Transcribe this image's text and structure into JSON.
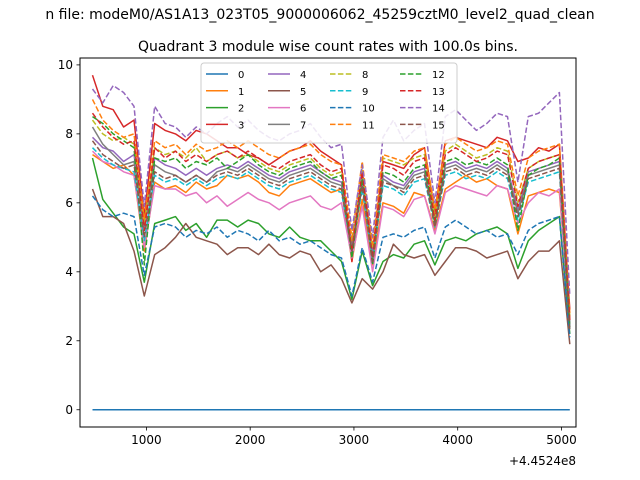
{
  "chart_data": {
    "type": "line",
    "suptitle": "n file: modeM0/AS1A13_023T05_9000006062_45259cztM0_level2_quad_clean",
    "title": "Quadrant 3 module wise count rates with 100.0s bins.",
    "xlabel": "",
    "ylabel": "",
    "x_offset_label": "+4.4524e8",
    "xlim": [
      360,
      5140
    ],
    "ylim": [
      -0.5,
      10.2
    ],
    "xticks": [
      1000,
      2000,
      3000,
      4000,
      5000
    ],
    "xtick_labels": [
      "1000",
      "2000",
      "3000",
      "4000",
      "5000"
    ],
    "yticks": [
      0,
      2,
      4,
      6,
      8,
      10
    ],
    "ytick_labels": [
      "0",
      "2",
      "4",
      "6",
      "8",
      "10"
    ],
    "grid": false,
    "legend_placement": "top-center",
    "legend_columns": 4,
    "x": [
      480,
      580,
      680,
      780,
      880,
      980,
      1080,
      1180,
      1280,
      1380,
      1480,
      1580,
      1680,
      1780,
      1880,
      1980,
      2080,
      2180,
      2280,
      2380,
      2480,
      2580,
      2680,
      2780,
      2880,
      2980,
      3080,
      3180,
      3280,
      3380,
      3480,
      3580,
      3680,
      3780,
      3880,
      3980,
      4080,
      4180,
      4280,
      4380,
      4480,
      4580,
      4680,
      4780,
      4880,
      4980,
      5080
    ],
    "series": [
      {
        "name": "0",
        "color": "#1f77b4",
        "dash": "solid",
        "values": [
          0,
          0,
          0,
          0,
          0,
          0,
          0,
          0,
          0,
          0,
          0,
          0,
          0,
          0,
          0,
          0,
          0,
          0,
          0,
          0,
          0,
          0,
          0,
          0,
          0,
          0,
          0,
          0,
          0,
          0,
          0,
          0,
          0,
          0,
          0,
          0,
          0,
          0,
          0,
          0,
          0,
          0,
          0,
          0,
          0,
          0,
          0
        ]
      },
      {
        "name": "1",
        "color": "#ff7f0e",
        "dash": "solid",
        "values": [
          7.4,
          7.2,
          7.0,
          7.1,
          6.8,
          4.6,
          6.6,
          6.4,
          6.5,
          6.3,
          6.6,
          6.4,
          6.5,
          6.8,
          6.7,
          6.8,
          6.6,
          6.3,
          6.2,
          6.5,
          6.6,
          6.7,
          6.5,
          6.3,
          6.4,
          4.3,
          6.1,
          4.2,
          6.0,
          5.9,
          5.7,
          6.3,
          6.2,
          5.2,
          6.4,
          6.6,
          6.8,
          6.6,
          6.7,
          6.5,
          6.4,
          5.1,
          6.2,
          6.3,
          6.4,
          6.3,
          2.6
        ]
      },
      {
        "name": "2",
        "color": "#2ca02c",
        "dash": "solid",
        "values": [
          7.3,
          6.1,
          5.7,
          5.3,
          5.1,
          3.7,
          5.4,
          5.5,
          5.6,
          5.2,
          5.4,
          5.0,
          5.5,
          5.5,
          5.3,
          5.5,
          5.4,
          5.1,
          5.0,
          5.3,
          5.0,
          4.9,
          4.9,
          4.6,
          4.3,
          3.2,
          4.6,
          3.6,
          4.3,
          4.5,
          4.4,
          4.8,
          4.9,
          4.2,
          4.9,
          5.0,
          4.9,
          5.1,
          5.2,
          5.3,
          5.1,
          4.1,
          4.9,
          5.2,
          5.4,
          5.6,
          2.2
        ]
      },
      {
        "name": "3",
        "color": "#d62728",
        "dash": "solid",
        "values": [
          9.7,
          8.8,
          8.7,
          8.2,
          8.4,
          5.6,
          8.3,
          8.1,
          8.0,
          7.8,
          8.1,
          8.0,
          7.8,
          7.6,
          7.6,
          7.4,
          7.3,
          7.1,
          7.3,
          7.5,
          7.6,
          7.8,
          7.5,
          7.3,
          7.1,
          4.3,
          6.9,
          4.6,
          7.2,
          7.1,
          7.0,
          7.4,
          7.6,
          5.7,
          7.8,
          7.9,
          7.8,
          7.7,
          7.6,
          7.9,
          7.8,
          7.2,
          7.3,
          7.6,
          7.5,
          7.7,
          2.9
        ]
      },
      {
        "name": "4",
        "color": "#9467bd",
        "dash": "solid",
        "values": [
          7.9,
          7.6,
          7.5,
          7.2,
          7.4,
          5.2,
          7.3,
          7.1,
          7.0,
          6.8,
          7.0,
          6.8,
          7.0,
          7.1,
          7.0,
          7.2,
          7.0,
          6.8,
          6.7,
          6.9,
          7.0,
          7.1,
          6.9,
          6.7,
          6.6,
          4.8,
          6.7,
          4.5,
          6.8,
          6.6,
          6.5,
          6.9,
          7.0,
          5.5,
          7.1,
          7.2,
          7.0,
          7.1,
          7.0,
          7.2,
          7.0,
          5.8,
          6.9,
          7.0,
          7.1,
          7.2,
          2.5
        ]
      },
      {
        "name": "5",
        "color": "#8c564b",
        "dash": "solid",
        "values": [
          6.4,
          5.6,
          5.6,
          5.4,
          4.6,
          3.3,
          4.5,
          4.7,
          5.0,
          5.4,
          5.0,
          4.9,
          4.8,
          4.5,
          4.7,
          4.7,
          4.5,
          4.8,
          4.5,
          4.4,
          4.6,
          4.5,
          4.0,
          4.2,
          3.8,
          3.1,
          3.8,
          3.5,
          4.0,
          4.8,
          4.5,
          4.4,
          4.5,
          3.9,
          4.3,
          4.7,
          4.7,
          4.6,
          4.4,
          4.5,
          4.6,
          3.8,
          4.3,
          4.6,
          4.6,
          4.9,
          1.9
        ]
      },
      {
        "name": "6",
        "color": "#e377c2",
        "dash": "solid",
        "values": [
          7.5,
          7.2,
          7.1,
          6.9,
          6.8,
          4.7,
          6.5,
          6.4,
          6.4,
          6.2,
          6.3,
          6.0,
          6.2,
          5.9,
          6.1,
          6.3,
          6.1,
          6.0,
          5.8,
          6.0,
          6.1,
          6.2,
          5.9,
          5.8,
          6.0,
          4.4,
          5.9,
          4.0,
          5.9,
          5.8,
          5.6,
          6.1,
          6.2,
          5.1,
          6.3,
          6.5,
          6.4,
          6.3,
          6.2,
          6.5,
          6.4,
          5.4,
          6.0,
          6.3,
          6.2,
          6.4,
          2.4
        ]
      },
      {
        "name": "7",
        "color": "#7f7f7f",
        "dash": "solid",
        "values": [
          8.2,
          7.7,
          7.4,
          7.1,
          7.2,
          5.3,
          7.1,
          6.9,
          6.8,
          6.6,
          6.8,
          6.6,
          6.9,
          7.0,
          6.9,
          7.1,
          6.9,
          6.7,
          6.6,
          6.8,
          6.9,
          7.0,
          6.8,
          6.6,
          6.5,
          4.7,
          6.6,
          4.4,
          6.7,
          6.5,
          6.4,
          6.8,
          6.9,
          5.4,
          7.0,
          7.1,
          6.9,
          7.0,
          6.9,
          7.1,
          6.9,
          5.7,
          6.8,
          6.9,
          7.0,
          7.1,
          2.4
        ]
      },
      {
        "name": "8",
        "color": "#bcbd22",
        "dash": "dashed",
        "values": [
          8.4,
          8.0,
          7.8,
          7.9,
          7.7,
          5.4,
          7.6,
          7.4,
          7.5,
          7.3,
          7.6,
          7.2,
          7.4,
          7.5,
          7.3,
          7.4,
          7.2,
          7.0,
          6.9,
          7.1,
          7.2,
          7.3,
          7.0,
          6.8,
          6.9,
          4.9,
          7.0,
          4.7,
          7.3,
          7.2,
          7.1,
          7.3,
          7.4,
          5.6,
          7.5,
          7.7,
          7.5,
          7.3,
          7.4,
          7.6,
          7.5,
          6.0,
          7.0,
          7.2,
          7.3,
          7.4,
          2.7
        ]
      },
      {
        "name": "9",
        "color": "#17becf",
        "dash": "dashed",
        "values": [
          7.6,
          7.3,
          7.1,
          7.0,
          6.9,
          4.9,
          6.8,
          6.6,
          6.7,
          6.5,
          6.7,
          6.5,
          6.7,
          6.8,
          6.7,
          6.9,
          6.7,
          6.5,
          6.4,
          6.6,
          6.7,
          6.8,
          6.6,
          6.4,
          6.3,
          4.6,
          6.4,
          4.3,
          6.5,
          6.4,
          6.2,
          6.6,
          6.7,
          5.3,
          6.8,
          6.9,
          6.7,
          6.8,
          6.7,
          6.9,
          6.7,
          5.5,
          6.6,
          6.7,
          6.8,
          6.9,
          2.3
        ]
      },
      {
        "name": "10",
        "color": "#1f77b4",
        "dash": "dashed",
        "values": [
          6.2,
          5.8,
          5.6,
          5.7,
          5.6,
          3.9,
          5.3,
          5.4,
          5.3,
          5.0,
          5.2,
          5.1,
          5.3,
          5.0,
          5.2,
          5.1,
          4.9,
          5.2,
          4.9,
          5.0,
          4.8,
          4.9,
          4.7,
          4.5,
          4.4,
          3.3,
          4.7,
          3.7,
          5.0,
          5.1,
          5.0,
          5.2,
          5.3,
          4.4,
          5.3,
          5.5,
          5.3,
          5.1,
          5.2,
          5.0,
          5.1,
          4.5,
          5.2,
          5.4,
          5.5,
          5.6,
          2.1
        ]
      },
      {
        "name": "11",
        "color": "#ff7f0e",
        "dash": "dashed",
        "values": [
          9.0,
          8.4,
          8.1,
          7.9,
          8.0,
          5.5,
          7.8,
          7.6,
          7.7,
          7.4,
          7.7,
          7.5,
          7.6,
          7.8,
          7.6,
          7.8,
          7.6,
          7.4,
          7.3,
          7.5,
          7.6,
          7.7,
          7.4,
          7.2,
          7.1,
          5.0,
          7.2,
          4.8,
          7.4,
          7.3,
          7.2,
          7.5,
          7.6,
          5.8,
          7.7,
          7.9,
          7.7,
          7.5,
          7.6,
          7.8,
          7.7,
          6.2,
          7.3,
          7.5,
          7.6,
          7.7,
          2.8
        ]
      },
      {
        "name": "12",
        "color": "#2ca02c",
        "dash": "dashed",
        "values": [
          8.5,
          8.3,
          8.0,
          7.8,
          7.6,
          4.2,
          7.3,
          7.2,
          7.3,
          7.0,
          7.2,
          7.1,
          7.3,
          7.0,
          7.2,
          7.4,
          7.1,
          6.9,
          6.8,
          7.0,
          7.1,
          7.2,
          6.9,
          6.7,
          6.8,
          4.4,
          6.7,
          4.2,
          6.9,
          6.8,
          6.6,
          7.0,
          7.1,
          5.4,
          7.2,
          7.3,
          7.1,
          7.2,
          7.1,
          7.3,
          7.1,
          5.2,
          6.8,
          7.0,
          7.1,
          7.3,
          2.4
        ]
      },
      {
        "name": "13",
        "color": "#d62728",
        "dash": "dashed",
        "values": [
          8.6,
          8.2,
          7.9,
          7.7,
          7.8,
          5.2,
          7.6,
          7.3,
          7.5,
          7.2,
          7.4,
          7.2,
          7.4,
          7.5,
          7.3,
          7.5,
          7.3,
          7.1,
          7.0,
          7.2,
          7.3,
          7.4,
          7.1,
          6.9,
          7.0,
          4.6,
          6.9,
          4.4,
          7.1,
          7.0,
          6.8,
          7.2,
          7.3,
          5.5,
          7.4,
          7.6,
          7.4,
          7.2,
          7.3,
          7.5,
          7.4,
          5.9,
          7.0,
          7.2,
          7.3,
          7.4,
          2.6
        ]
      },
      {
        "name": "14",
        "color": "#9467bd",
        "dash": "dashed",
        "values": [
          9.3,
          8.9,
          9.4,
          9.2,
          8.8,
          5.9,
          8.8,
          8.3,
          8.2,
          7.9,
          8.2,
          8.0,
          8.3,
          8.5,
          8.2,
          8.4,
          8.1,
          7.9,
          7.8,
          8.0,
          8.1,
          8.3,
          7.9,
          7.6,
          7.7,
          5.2,
          7.1,
          5.0,
          7.9,
          8.4,
          7.8,
          8.1,
          8.3,
          6.0,
          8.5,
          8.7,
          8.4,
          8.1,
          8.3,
          8.6,
          8.5,
          6.6,
          8.5,
          8.6,
          8.9,
          9.2,
          3.3
        ]
      },
      {
        "name": "15",
        "color": "#8c564b",
        "dash": "dashed",
        "values": [
          7.8,
          7.4,
          7.2,
          7.0,
          7.1,
          5.0,
          6.9,
          6.7,
          6.8,
          6.6,
          6.8,
          6.6,
          6.8,
          6.9,
          6.8,
          7.0,
          6.8,
          6.6,
          6.5,
          6.7,
          6.8,
          6.9,
          6.7,
          6.5,
          6.4,
          4.6,
          6.5,
          4.3,
          6.6,
          6.5,
          6.3,
          6.7,
          6.8,
          5.3,
          6.9,
          7.0,
          6.8,
          6.9,
          6.8,
          7.0,
          6.8,
          5.6,
          6.7,
          6.8,
          6.9,
          7.0,
          2.3
        ]
      }
    ]
  }
}
